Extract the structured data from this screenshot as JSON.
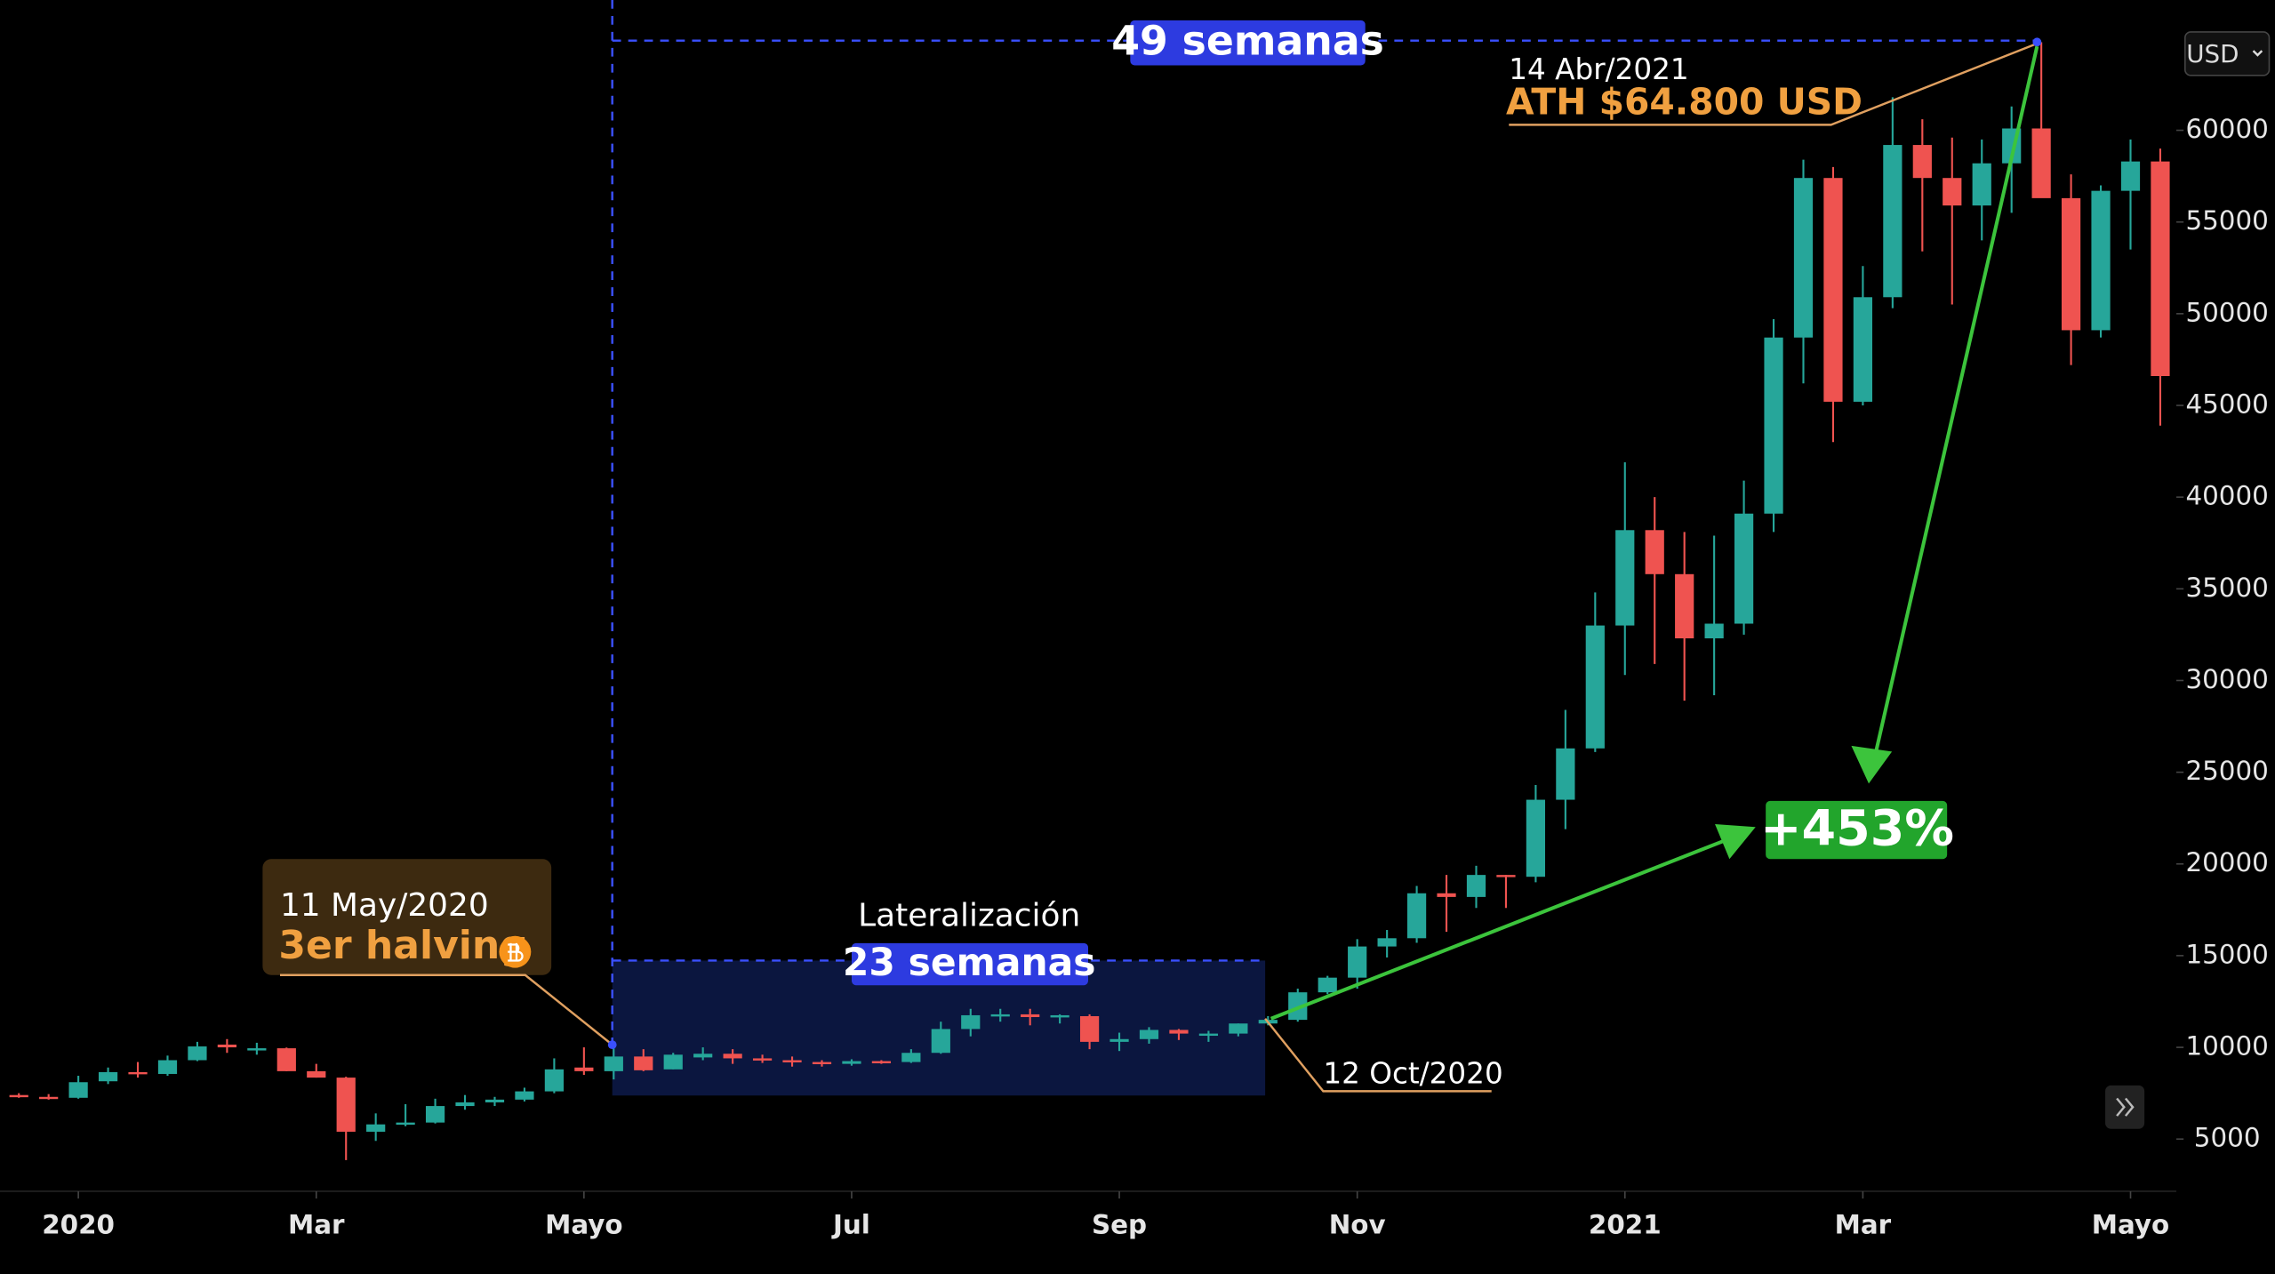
{
  "chart_data": {
    "type": "candlestick",
    "currency": "USD",
    "up_color": "#26a69a",
    "down_color": "#ef5350",
    "open": [
      7400,
      7300,
      7250,
      8150,
      8650,
      8550,
      9300,
      10150,
      9950,
      9950,
      8700,
      8350,
      5400,
      5800,
      5900,
      6800,
      7000,
      7150,
      7600,
      8900,
      8700,
      9500,
      8800,
      9450,
      9650,
      9400,
      9300,
      9200,
      9100,
      9250,
      9200,
      9700,
      11000,
      11750,
      11800,
      11650,
      11700,
      10300,
      10450,
      10950,
      10750,
      10750,
      11300,
      11500,
      13000,
      13800,
      15500,
      15950,
      18400,
      18200,
      19400,
      19300,
      23500,
      26300,
      33000,
      38200,
      35800,
      32300,
      33100,
      39100,
      48700,
      57400,
      45200,
      50900,
      59200,
      57400,
      55900,
      58200,
      60100,
      56300,
      49100,
      56700,
      58300
    ],
    "high": [
      7500,
      7450,
      8450,
      8900,
      9200,
      9550,
      10300,
      10450,
      10250,
      9990,
      9100,
      8400,
      6400,
      6900,
      7200,
      7400,
      7300,
      7800,
      9400,
      10000,
      9950,
      9900,
      9700,
      10000,
      9900,
      9600,
      9500,
      9300,
      9350,
      9300,
      9900,
      11400,
      12100,
      12100,
      12100,
      11800,
      11800,
      10800,
      11100,
      11000,
      10900,
      11300,
      11700,
      13200,
      13900,
      15900,
      16400,
      18800,
      19400,
      19900,
      19400,
      24300,
      28400,
      34800,
      41900,
      40000,
      38100,
      37900,
      40900,
      49700,
      58400,
      58000,
      52600,
      61800,
      60600,
      59600,
      59500,
      61300,
      64800,
      57600,
      57000,
      59500,
      59000
    ],
    "low": [
      7250,
      7150,
      7200,
      8000,
      8350,
      8450,
      9250,
      9700,
      9600,
      8700,
      8350,
      3850,
      4900,
      5700,
      5850,
      6600,
      6800,
      7050,
      7500,
      8500,
      8250,
      8700,
      8800,
      9300,
      9100,
      9150,
      8950,
      8950,
      9000,
      9100,
      9150,
      9650,
      10600,
      11400,
      11200,
      11300,
      9900,
      9800,
      10200,
      10400,
      10300,
      10600,
      11200,
      11400,
      12900,
      13200,
      14900,
      15700,
      16300,
      17600,
      17600,
      19000,
      21900,
      26100,
      30300,
      30900,
      28900,
      29200,
      32500,
      38100,
      46200,
      43000,
      45000,
      50300,
      53400,
      50500,
      54000,
      55500,
      56600,
      47200,
      48700,
      53500,
      43900
    ],
    "close": [
      7300,
      7250,
      8100,
      8650,
      8550,
      9300,
      10050,
      10000,
      9950,
      8700,
      8350,
      5400,
      5800,
      5900,
      6800,
      7000,
      7150,
      7600,
      8800,
      8700,
      9500,
      8750,
      9600,
      9650,
      9400,
      9300,
      9200,
      9100,
      9250,
      9200,
      9700,
      11000,
      11750,
      11800,
      11650,
      11750,
      10300,
      10450,
      10950,
      10750,
      10750,
      11300,
      11500,
      13000,
      13800,
      15500,
      15950,
      18400,
      18200,
      19400,
      19300,
      23500,
      26300,
      33000,
      38200,
      35800,
      32300,
      33100,
      39100,
      48700,
      57400,
      45200,
      50900,
      59200,
      57400,
      55900,
      58200,
      60100,
      56300,
      49100,
      56700,
      58300,
      46600
    ],
    "xlim": [
      -0.634,
      72.54
    ],
    "xticks": [
      {
        "value": 2,
        "label": "2020"
      },
      {
        "value": 10,
        "label": "Mar"
      },
      {
        "value": 19,
        "label": "Mayo"
      },
      {
        "value": 28,
        "label": "Jul"
      },
      {
        "value": 37,
        "label": "Sep"
      },
      {
        "value": 45,
        "label": "Nov"
      },
      {
        "value": 54,
        "label": "2021"
      },
      {
        "value": 62,
        "label": "Mar"
      },
      {
        "value": 71,
        "label": "Mayo"
      }
    ],
    "ylim": [
      2231,
      67104
    ],
    "yticks": [
      5000,
      10000,
      15000,
      20000,
      25000,
      30000,
      35000,
      40000,
      45000,
      50000,
      55000,
      60000
    ],
    "annotations": {
      "total_span": "49 semanas",
      "ath_date": "14 Abr/2021",
      "ath_label": "ATH $64.800 USD",
      "halving_date": "11 May/2020",
      "halving_label": "3er halving",
      "range_label": "Lateralización",
      "range_span": "23 semanas",
      "breakout_date": "12 Oct/2020",
      "gain": "+453%"
    }
  }
}
